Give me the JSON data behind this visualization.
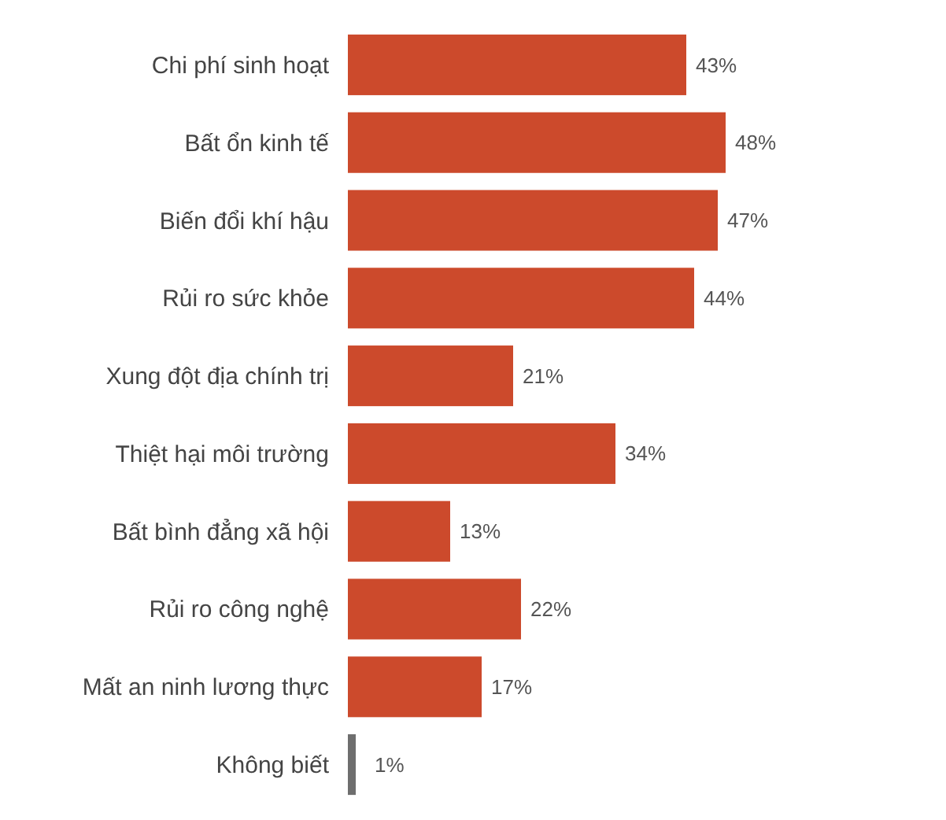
{
  "chart_data": {
    "type": "bar",
    "orientation": "horizontal",
    "categories": [
      "Chi phí sinh hoạt",
      "Bất ổn kinh tế",
      "Biến đổi khí hậu",
      "Rủi ro sức khỏe",
      "Xung đột địa chính trị",
      "Thiệt hại môi trường",
      "Bất bình đẳng xã hội",
      "Rủi ro công nghệ",
      "Mất an ninh lương thực",
      "Không biết"
    ],
    "values": [
      43,
      48,
      47,
      44,
      21,
      34,
      13,
      22,
      17,
      1
    ],
    "colors": [
      "#cc4a2c",
      "#cc4a2c",
      "#cc4a2c",
      "#cc4a2c",
      "#cc4a2c",
      "#cc4a2c",
      "#cc4a2c",
      "#cc4a2c",
      "#cc4a2c",
      "#6e6e6e"
    ],
    "value_labels": [
      "43%",
      "48%",
      "47%",
      "44%",
      "21%",
      "34%",
      "13%",
      "22%",
      "17%",
      "1%"
    ]
  }
}
